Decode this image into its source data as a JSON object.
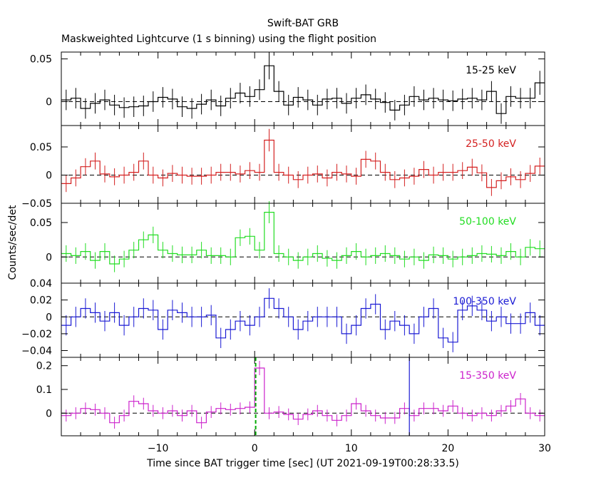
{
  "figure": {
    "title": "Swift-BAT GRB",
    "subtitle": "Maskweighted Lightcurve (1 s binning) using the flight position",
    "ylabel": "Counts/sec/det",
    "xlabel": "Time since BAT trigger time [sec] (UT 2021-09-19T00:28:33.5)"
  },
  "chart_data": [
    {
      "type": "line",
      "name": "15-25 keV",
      "color": "#000000",
      "x_start": -19.5,
      "bin_width": 1,
      "xlim": [
        -20,
        30
      ],
      "ylim": [
        -0.028,
        0.058
      ],
      "yticks": [
        {
          "v": 0.05,
          "label": "0.05"
        },
        {
          "v": 0,
          "label": "0"
        }
      ],
      "values": [
        0.002,
        0.004,
        -0.008,
        -0.002,
        0.002,
        -0.004,
        -0.007,
        -0.006,
        -0.005,
        0.0,
        0.005,
        0.003,
        -0.006,
        -0.008,
        -0.003,
        0.002,
        -0.005,
        0.004,
        0.01,
        0.006,
        0.014,
        0.042,
        0.012,
        -0.004,
        0.005,
        0.002,
        -0.004,
        0.003,
        0.004,
        -0.002,
        0.004,
        0.008,
        0.003,
        -0.001,
        -0.01,
        -0.004,
        0.006,
        0.002,
        0.004,
        0.002,
        0.001,
        0.003,
        0.004,
        0.002,
        0.012,
        -0.014,
        0.006,
        0.004,
        0.004,
        0.022
      ],
      "errors": [
        0.012,
        0.012,
        0.012,
        0.012,
        0.012,
        0.012,
        0.012,
        0.012,
        0.012,
        0.012,
        0.012,
        0.012,
        0.012,
        0.012,
        0.012,
        0.012,
        0.012,
        0.012,
        0.012,
        0.012,
        0.012,
        0.016,
        0.012,
        0.012,
        0.012,
        0.012,
        0.012,
        0.012,
        0.012,
        0.012,
        0.012,
        0.012,
        0.012,
        0.012,
        0.012,
        0.012,
        0.012,
        0.012,
        0.012,
        0.012,
        0.012,
        0.012,
        0.012,
        0.012,
        0.012,
        0.012,
        0.012,
        0.012,
        0.012,
        0.014
      ],
      "vlines": []
    },
    {
      "type": "line",
      "name": "25-50 keV",
      "color": "#d42020",
      "x_start": -19.5,
      "bin_width": 1,
      "xlim": [
        -20,
        30
      ],
      "ylim": [
        -0.05,
        0.088
      ],
      "yticks": [
        {
          "v": 0.05,
          "label": "0.05"
        },
        {
          "v": 0,
          "label": "0"
        },
        {
          "v": -0.05,
          "label": "−0.05"
        }
      ],
      "values": [
        -0.015,
        -0.005,
        0.015,
        0.025,
        0.002,
        -0.003,
        0.0,
        0.005,
        0.025,
        0.0,
        -0.005,
        0.003,
        0.0,
        -0.002,
        -0.002,
        0.0,
        0.005,
        0.005,
        0.002,
        0.008,
        0.005,
        0.062,
        0.005,
        0.0,
        -0.008,
        0.0,
        0.002,
        -0.005,
        0.005,
        0.002,
        -0.002,
        0.028,
        0.025,
        0.005,
        -0.008,
        -0.005,
        -0.002,
        0.01,
        0.0,
        0.005,
        0.005,
        0.008,
        0.014,
        0.004,
        -0.022,
        -0.01,
        -0.003,
        -0.008,
        0.003,
        0.016
      ],
      "errors": [
        0.015,
        0.015,
        0.015,
        0.015,
        0.015,
        0.015,
        0.015,
        0.015,
        0.015,
        0.015,
        0.015,
        0.015,
        0.015,
        0.015,
        0.015,
        0.015,
        0.015,
        0.015,
        0.015,
        0.015,
        0.015,
        0.02,
        0.015,
        0.015,
        0.015,
        0.015,
        0.015,
        0.015,
        0.015,
        0.015,
        0.015,
        0.015,
        0.015,
        0.015,
        0.015,
        0.015,
        0.015,
        0.015,
        0.015,
        0.015,
        0.015,
        0.015,
        0.015,
        0.015,
        0.015,
        0.015,
        0.015,
        0.015,
        0.015,
        0.015
      ],
      "vlines": []
    },
    {
      "type": "line",
      "name": "50-100 keV",
      "color": "#22dd22",
      "x_start": -19.5,
      "bin_width": 1,
      "xlim": [
        -20,
        30
      ],
      "ylim": [
        -0.038,
        0.078
      ],
      "yticks": [
        {
          "v": 0.05,
          "label": "0.05"
        },
        {
          "v": 0,
          "label": "0"
        }
      ],
      "values": [
        0.005,
        0.002,
        0.008,
        -0.005,
        0.008,
        -0.01,
        -0.003,
        0.01,
        0.025,
        0.032,
        0.01,
        0.005,
        0.003,
        0.003,
        0.01,
        0.002,
        0.002,
        0.0,
        0.028,
        0.03,
        0.01,
        0.065,
        0.005,
        0.0,
        -0.005,
        0.0,
        0.005,
        -0.002,
        -0.005,
        0.002,
        0.008,
        0.0,
        0.002,
        0.005,
        0.002,
        -0.003,
        0.0,
        -0.005,
        0.003,
        0.002,
        -0.003,
        0.0,
        0.002,
        0.005,
        0.004,
        0.002,
        0.008,
        0.0,
        0.014,
        0.012
      ],
      "errors": [
        0.012,
        0.012,
        0.012,
        0.012,
        0.012,
        0.012,
        0.012,
        0.012,
        0.012,
        0.012,
        0.012,
        0.012,
        0.012,
        0.012,
        0.012,
        0.012,
        0.012,
        0.012,
        0.012,
        0.012,
        0.012,
        0.016,
        0.012,
        0.012,
        0.012,
        0.012,
        0.012,
        0.012,
        0.012,
        0.012,
        0.012,
        0.012,
        0.012,
        0.012,
        0.012,
        0.012,
        0.012,
        0.012,
        0.012,
        0.012,
        0.012,
        0.012,
        0.012,
        0.012,
        0.012,
        0.012,
        0.012,
        0.012,
        0.012,
        0.012
      ],
      "vlines": []
    },
    {
      "type": "line",
      "name": "100-350 keV",
      "color": "#1a1ad4",
      "x_start": -19.5,
      "bin_width": 1,
      "xlim": [
        -20,
        30
      ],
      "ylim": [
        -0.048,
        0.04
      ],
      "yticks": [
        {
          "v": 0.04,
          "label": "0.04"
        },
        {
          "v": 0.02,
          "label": "0.02"
        },
        {
          "v": 0,
          "label": "0"
        },
        {
          "v": -0.02,
          "label": "−0.02"
        },
        {
          "v": -0.04,
          "label": "−0.04"
        }
      ],
      "values": [
        -0.01,
        0.0,
        0.01,
        0.005,
        -0.005,
        0.005,
        -0.01,
        0.0,
        0.01,
        0.008,
        -0.015,
        0.008,
        0.005,
        0.0,
        0.0,
        0.002,
        -0.025,
        -0.015,
        -0.005,
        -0.01,
        0.0,
        0.022,
        0.01,
        0.0,
        -0.015,
        -0.005,
        0.0,
        0.0,
        0.0,
        -0.02,
        -0.01,
        0.01,
        0.015,
        -0.015,
        -0.005,
        -0.01,
        -0.02,
        0.0,
        0.01,
        -0.025,
        -0.03,
        0.008,
        0.013,
        0.008,
        -0.005,
        0.0,
        -0.008,
        -0.008,
        0.005,
        -0.01
      ],
      "errors": [
        0.012,
        0.012,
        0.012,
        0.012,
        0.012,
        0.012,
        0.012,
        0.012,
        0.012,
        0.012,
        0.012,
        0.012,
        0.012,
        0.012,
        0.012,
        0.012,
        0.012,
        0.012,
        0.012,
        0.012,
        0.012,
        0.012,
        0.012,
        0.012,
        0.012,
        0.012,
        0.012,
        0.012,
        0.012,
        0.012,
        0.012,
        0.012,
        0.012,
        0.012,
        0.012,
        0.012,
        0.012,
        0.012,
        0.012,
        0.012,
        0.012,
        0.012,
        0.012,
        0.012,
        0.012,
        0.012,
        0.012,
        0.012,
        0.012,
        0.012
      ],
      "vlines": []
    },
    {
      "type": "line",
      "name": "15-350 keV",
      "color": "#cc22cc",
      "x_start": -19.5,
      "bin_width": 1,
      "xlim": [
        -20,
        30
      ],
      "ylim": [
        -0.095,
        0.235
      ],
      "yticks": [
        {
          "v": 0.2,
          "label": "0.2"
        },
        {
          "v": 0.1,
          "label": "0.1"
        },
        {
          "v": 0,
          "label": "0"
        }
      ],
      "values": [
        -0.01,
        0.0,
        0.02,
        0.015,
        0.0,
        -0.04,
        -0.01,
        0.05,
        0.04,
        0.01,
        0.0,
        0.01,
        -0.01,
        0.01,
        -0.04,
        0.005,
        0.02,
        0.015,
        0.02,
        0.025,
        0.19,
        0.0,
        0.005,
        -0.005,
        -0.025,
        -0.005,
        0.01,
        -0.01,
        -0.03,
        -0.01,
        0.04,
        0.01,
        -0.01,
        -0.02,
        -0.02,
        0.02,
        -0.01,
        0.02,
        0.02,
        0.01,
        0.03,
        0.0,
        -0.01,
        0.0,
        -0.01,
        0.01,
        0.03,
        0.06,
        0.0,
        -0.01
      ],
      "errors": [
        0.025,
        0.025,
        0.025,
        0.025,
        0.025,
        0.025,
        0.025,
        0.025,
        0.025,
        0.025,
        0.025,
        0.025,
        0.025,
        0.025,
        0.025,
        0.025,
        0.025,
        0.025,
        0.025,
        0.025,
        0.03,
        0.025,
        0.025,
        0.025,
        0.025,
        0.025,
        0.025,
        0.025,
        0.025,
        0.025,
        0.025,
        0.025,
        0.025,
        0.025,
        0.025,
        0.025,
        0.025,
        0.025,
        0.025,
        0.025,
        0.025,
        0.025,
        0.025,
        0.025,
        0.025,
        0.025,
        0.025,
        0.025,
        0.025,
        0.025
      ],
      "vlines": [
        {
          "x": 0.1,
          "color": "#00aa00",
          "style": "dashed"
        },
        {
          "x": 16.0,
          "color": "#1a1ad4",
          "style": "solid"
        }
      ]
    }
  ],
  "xaxis": {
    "ticks": [
      {
        "v": -10,
        "label": "−10"
      },
      {
        "v": 0,
        "label": "0"
      },
      {
        "v": 10,
        "label": "10"
      },
      {
        "v": 20,
        "label": "20"
      },
      {
        "v": 30,
        "label": "30"
      }
    ]
  }
}
